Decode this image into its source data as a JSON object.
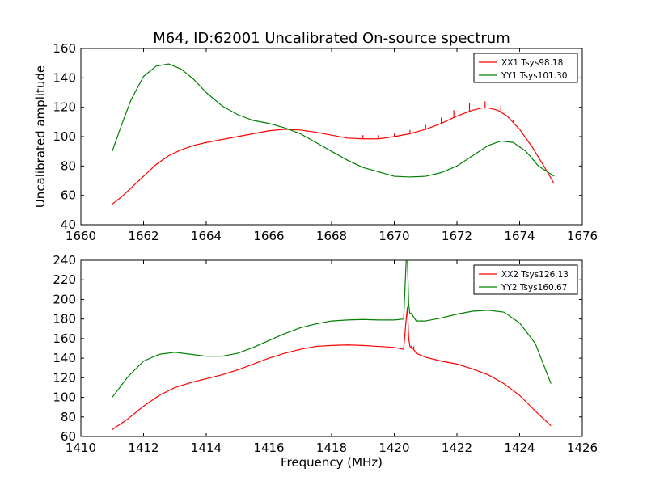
{
  "figure": {
    "title": "M64, ID:62001 Uncalibrated On-source spectrum",
    "ylabel": "Uncalibrated amplitude",
    "xlabel": "Frequency (MHz)"
  },
  "colors": {
    "red": "#ff0000",
    "green": "#008000"
  },
  "chart_data": [
    {
      "type": "line",
      "xlim": [
        1660,
        1676
      ],
      "ylim": [
        40,
        160
      ],
      "xticks": [
        1660,
        1662,
        1664,
        1666,
        1668,
        1670,
        1672,
        1674,
        1676
      ],
      "yticks": [
        40,
        60,
        80,
        100,
        120,
        140,
        160
      ],
      "grid": false,
      "legend_position": "top-right",
      "series": [
        {
          "name": "XX1 Tsys98.18",
          "color": "#ff0000",
          "x": [
            1661.0,
            1661.3,
            1661.6,
            1662.0,
            1662.4,
            1662.8,
            1663.2,
            1663.6,
            1664.0,
            1664.5,
            1665.0,
            1665.5,
            1666.0,
            1666.5,
            1667.0,
            1667.5,
            1668.0,
            1668.5,
            1669.0,
            1669.5,
            1670.0,
            1670.5,
            1671.0,
            1671.5,
            1672.0,
            1672.5,
            1672.8,
            1673.0,
            1673.3,
            1673.6,
            1674.0,
            1674.4,
            1674.8,
            1675.1
          ],
          "y": [
            54,
            59,
            65,
            73,
            81,
            87,
            91,
            94,
            96,
            98,
            100,
            102,
            104,
            105,
            104.5,
            103,
            101,
            99,
            98.5,
            98.5,
            100,
            102,
            105,
            109,
            114,
            118,
            119.5,
            119.5,
            118,
            114,
            105,
            93,
            79,
            68
          ],
          "spikes": [
            {
              "x": 1669.0,
              "y": 101
            },
            {
              "x": 1669.5,
              "y": 101
            },
            {
              "x": 1670.0,
              "y": 102
            },
            {
              "x": 1670.5,
              "y": 104.5
            },
            {
              "x": 1671.0,
              "y": 108
            },
            {
              "x": 1671.5,
              "y": 113
            },
            {
              "x": 1671.9,
              "y": 118
            },
            {
              "x": 1672.4,
              "y": 123
            },
            {
              "x": 1672.9,
              "y": 124
            },
            {
              "x": 1673.4,
              "y": 121
            },
            {
              "x": 1673.8,
              "y": 111
            },
            {
              "x": 1674.3,
              "y": 96
            }
          ]
        },
        {
          "name": "YY1 Tsys101.30",
          "color": "#008000",
          "x": [
            1661.0,
            1661.3,
            1661.6,
            1662.0,
            1662.4,
            1662.8,
            1663.2,
            1663.6,
            1664.0,
            1664.5,
            1665.0,
            1665.5,
            1666.0,
            1666.5,
            1667.0,
            1667.5,
            1668.0,
            1668.5,
            1669.0,
            1669.5,
            1670.0,
            1670.5,
            1671.0,
            1671.5,
            1672.0,
            1672.5,
            1673.0,
            1673.4,
            1673.8,
            1674.2,
            1674.6,
            1675.1
          ],
          "y": [
            90,
            108,
            125,
            141,
            148,
            149.5,
            146,
            139,
            130,
            121,
            115,
            111,
            109,
            106,
            102,
            96,
            90,
            84,
            79,
            76,
            73,
            72.5,
            73,
            75.5,
            80,
            87,
            94,
            97,
            96,
            90,
            80,
            73
          ]
        }
      ]
    },
    {
      "type": "line",
      "xlim": [
        1410,
        1426
      ],
      "ylim": [
        60,
        240
      ],
      "xticks": [
        1410,
        1412,
        1414,
        1416,
        1418,
        1420,
        1422,
        1424,
        1426
      ],
      "yticks": [
        60,
        80,
        100,
        120,
        140,
        160,
        180,
        200,
        220,
        240
      ],
      "xlabel": "Frequency (MHz)",
      "grid": false,
      "legend_position": "top-right",
      "series": [
        {
          "name": "XX2 Tsys126.13",
          "color": "#ff0000",
          "x": [
            1411.0,
            1411.5,
            1412.0,
            1412.5,
            1413.0,
            1413.5,
            1414.0,
            1414.5,
            1415.0,
            1415.5,
            1416.0,
            1416.5,
            1417.0,
            1417.5,
            1418.0,
            1418.5,
            1419.0,
            1419.5,
            1420.0,
            1420.3,
            1420.38,
            1420.42,
            1420.46,
            1420.5,
            1420.55,
            1420.6,
            1420.7,
            1421.0,
            1421.5,
            1422.0,
            1422.5,
            1423.0,
            1423.5,
            1424.0,
            1424.5,
            1425.0
          ],
          "y": [
            67,
            78,
            91,
            102,
            110,
            115,
            119,
            123,
            128,
            134,
            140,
            145,
            149,
            152,
            153,
            153.5,
            153,
            152,
            151,
            149,
            180,
            192,
            160,
            152,
            150,
            150,
            145,
            141,
            137,
            134,
            129,
            123,
            114,
            102,
            86,
            71
          ],
          "spikes": [
            {
              "x": 1420.55,
              "y": 153
            },
            {
              "x": 1420.62,
              "y": 152
            }
          ]
        },
        {
          "name": "YY2 Tsys160.67",
          "color": "#008000",
          "x": [
            1411.0,
            1411.5,
            1412.0,
            1412.5,
            1413.0,
            1413.5,
            1414.0,
            1414.5,
            1415.0,
            1415.5,
            1416.0,
            1416.5,
            1417.0,
            1417.5,
            1418.0,
            1418.5,
            1419.0,
            1419.5,
            1420.0,
            1420.3,
            1420.38,
            1420.42,
            1420.46,
            1420.5,
            1420.55,
            1420.6,
            1420.7,
            1421.0,
            1421.5,
            1422.0,
            1422.5,
            1423.0,
            1423.5,
            1424.0,
            1424.5,
            1425.0
          ],
          "y": [
            100,
            121,
            137,
            144,
            146,
            144,
            142,
            142,
            145,
            151,
            158,
            165,
            171,
            175,
            178,
            179,
            179.5,
            179,
            179,
            180,
            240,
            240,
            195,
            185,
            186,
            183,
            178,
            178,
            181,
            185,
            188,
            189,
            187,
            176,
            155,
            114
          ]
        }
      ]
    }
  ]
}
